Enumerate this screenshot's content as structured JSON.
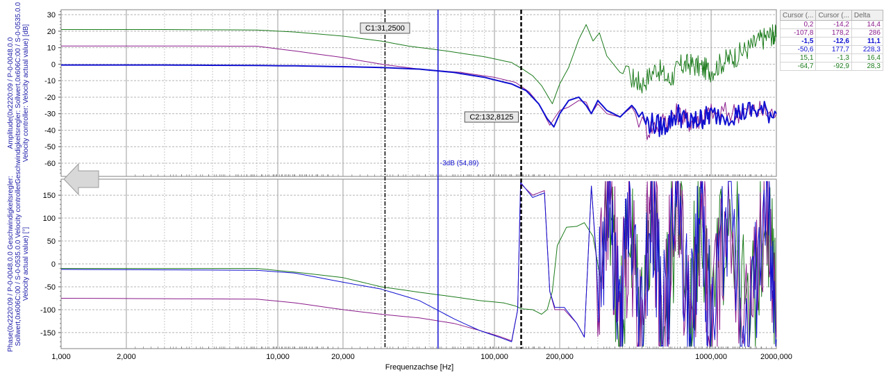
{
  "chart_data": [
    {
      "type": "line",
      "panel": "amplitude",
      "ylabel_lines": [
        "Amplitude(0x2220:09 / P-0-0048.0.0",
        "Geschwindigkeitsregler: Sollwert,0x606C:00 / S-0-0535.0.0",
        "Velocity controller: Velocity actual value) [dB]"
      ],
      "ylim": [
        -68,
        33
      ],
      "yticks": [
        30,
        20,
        10,
        0,
        -10,
        -20,
        -30,
        -40,
        -50,
        -60
      ],
      "xscale": "log",
      "xlim": [
        1000,
        2000000
      ],
      "grid": true,
      "series": [
        {
          "color": "#1a7a1a",
          "width": 1,
          "points": [
            [
              1000,
              21
            ],
            [
              3000,
              21
            ],
            [
              8000,
              20.7
            ],
            [
              12000,
              19.5
            ],
            [
              20000,
              17
            ],
            [
              30000,
              14
            ],
            [
              40000,
              11
            ],
            [
              60000,
              8
            ],
            [
              90000,
              4.5
            ],
            [
              120000,
              1
            ],
            [
              135000,
              -3
            ],
            [
              150000,
              -7
            ],
            [
              165000,
              -13
            ],
            [
              185000,
              -24
            ],
            [
              200000,
              -12
            ],
            [
              220000,
              -2
            ],
            [
              245000,
              15
            ],
            [
              265000,
              24
            ],
            [
              285000,
              14
            ],
            [
              305000,
              19
            ],
            [
              330000,
              5
            ],
            [
              380000,
              -5
            ],
            [
              430000,
              -8
            ],
            [
              480000,
              -12
            ],
            [
              560000,
              -2
            ],
            [
              640000,
              -10
            ],
            [
              720000,
              -1
            ],
            [
              800000,
              0
            ],
            [
              900000,
              -2
            ],
            [
              1000000,
              -4
            ],
            [
              1150000,
              2
            ],
            [
              1300000,
              5
            ],
            [
              1500000,
              10
            ],
            [
              1700000,
              15
            ],
            [
              1900000,
              18
            ],
            [
              2000000,
              17
            ]
          ],
          "noise": {
            "from": 400000,
            "amp": 7
          }
        },
        {
          "color": "#8a1a8a",
          "width": 1,
          "points": [
            [
              1000,
              11
            ],
            [
              3000,
              11
            ],
            [
              8000,
              10.9
            ],
            [
              12000,
              8
            ],
            [
              20000,
              4
            ],
            [
              30000,
              0
            ],
            [
              45000,
              -3
            ],
            [
              70000,
              -5
            ],
            [
              100000,
              -8
            ],
            [
              125000,
              -11
            ],
            [
              145000,
              -17
            ],
            [
              160000,
              -24
            ],
            [
              180000,
              -37
            ],
            [
              200000,
              -28
            ],
            [
              220000,
              -26
            ],
            [
              245000,
              -22
            ],
            [
              265000,
              -23
            ],
            [
              280000,
              -30
            ],
            [
              300000,
              -24
            ],
            [
              330000,
              -30
            ],
            [
              380000,
              -32
            ],
            [
              430000,
              -26
            ],
            [
              500000,
              -40
            ],
            [
              600000,
              -35
            ],
            [
              700000,
              -30
            ],
            [
              800000,
              -35
            ],
            [
              900000,
              -32
            ],
            [
              1000000,
              -30
            ],
            [
              1300000,
              -29
            ],
            [
              1600000,
              -28
            ],
            [
              2000000,
              -30
            ]
          ],
          "noise": {
            "from": 450000,
            "amp": 7
          }
        },
        {
          "color": "#1010d0",
          "width": 2,
          "points": [
            [
              1000,
              -0.5
            ],
            [
              3000,
              -0.5
            ],
            [
              8000,
              -0.8
            ],
            [
              12000,
              -1
            ],
            [
              20000,
              -1.5
            ],
            [
              30000,
              -2
            ],
            [
              45000,
              -3
            ],
            [
              65000,
              -5
            ],
            [
              90000,
              -8
            ],
            [
              120000,
              -12
            ],
            [
              140000,
              -16
            ],
            [
              160000,
              -24
            ],
            [
              175000,
              -33
            ],
            [
              188000,
              -38
            ],
            [
              200000,
              -30
            ],
            [
              220000,
              -22
            ],
            [
              245000,
              -20
            ],
            [
              265000,
              -25
            ],
            [
              280000,
              -30
            ],
            [
              300000,
              -22
            ],
            [
              330000,
              -28
            ],
            [
              380000,
              -32
            ],
            [
              430000,
              -25
            ],
            [
              500000,
              -35
            ],
            [
              600000,
              -38
            ],
            [
              700000,
              -30
            ],
            [
              800000,
              -36
            ],
            [
              900000,
              -33
            ],
            [
              1000000,
              -31
            ],
            [
              1300000,
              -30
            ],
            [
              1600000,
              -28
            ],
            [
              2000000,
              -30
            ]
          ],
          "noise": {
            "from": 450000,
            "amp": 7
          }
        }
      ]
    },
    {
      "type": "line",
      "panel": "phase",
      "ylabel_lines": [
        "Phase(0x2220:09 / P-0-0048.0.0 Geschwindigkeitsregler:",
        "Sollwert,0x606C:00 / S-0-0535.0.0 Velocity controller:",
        "Velocity actual value) [°]"
      ],
      "ylim": [
        -185,
        185
      ],
      "yticks": [
        150,
        100,
        50,
        0,
        -50,
        -100,
        -150
      ],
      "xscale": "log",
      "xlim": [
        1000,
        2000000
      ],
      "xlabel": "Frequenzachse [Hz]",
      "xtick_labels": [
        [
          1000,
          "1,000"
        ],
        [
          2000,
          "2,000"
        ],
        [
          10000,
          "10,000"
        ],
        [
          20000,
          "20,000"
        ],
        [
          100000,
          "100,000"
        ],
        [
          200000,
          "200,000"
        ],
        [
          1000000,
          "1000,000"
        ],
        [
          2000000,
          "2000,000"
        ]
      ],
      "grid": true,
      "series": [
        {
          "color": "#1a7a1a",
          "width": 1,
          "points": [
            [
              1000,
              -10
            ],
            [
              3000,
              -10
            ],
            [
              8000,
              -10
            ],
            [
              12000,
              -18
            ],
            [
              20000,
              -30
            ],
            [
              30000,
              -50
            ],
            [
              45000,
              -62
            ],
            [
              65000,
              -72
            ],
            [
              85000,
              -80
            ],
            [
              110000,
              -85
            ],
            [
              125000,
              -92
            ],
            [
              133000,
              -98
            ],
            [
              150000,
              -100
            ],
            [
              165000,
              -110
            ],
            [
              175000,
              -100
            ],
            [
              185000,
              -60
            ],
            [
              195000,
              40
            ],
            [
              215000,
              80
            ],
            [
              240000,
              82
            ],
            [
              260000,
              90
            ],
            [
              285000,
              60
            ],
            [
              310000,
              -40
            ],
            [
              340000,
              150
            ],
            [
              380000,
              -150
            ],
            [
              420000,
              100
            ],
            [
              470000,
              -120
            ],
            [
              530000,
              140
            ],
            [
              600000,
              -160
            ],
            [
              700000,
              160
            ],
            [
              800000,
              -130
            ],
            [
              900000,
              170
            ],
            [
              1000000,
              -170
            ],
            [
              1200000,
              170
            ],
            [
              1500000,
              -170
            ],
            [
              1800000,
              175
            ],
            [
              2000000,
              -150
            ]
          ],
          "noise": {
            "from": 320000,
            "amp": 170,
            "clip": true
          }
        },
        {
          "color": "#8a1a8a",
          "width": 1,
          "points": [
            [
              1000,
              -75
            ],
            [
              3000,
              -76
            ],
            [
              8000,
              -77
            ],
            [
              12000,
              -85
            ],
            [
              20000,
              -100
            ],
            [
              30000,
              -110
            ],
            [
              45000,
              -118
            ],
            [
              65000,
              -130
            ],
            [
              85000,
              -145
            ],
            [
              105000,
              -158
            ],
            [
              120000,
              -168
            ],
            [
              128000,
              -100
            ],
            [
              132000,
              175
            ],
            [
              150000,
              150
            ],
            [
              170000,
              160
            ],
            [
              180000,
              -60
            ],
            [
              190000,
              -100
            ],
            [
              210000,
              -100
            ],
            [
              240000,
              -130
            ],
            [
              260000,
              -160
            ],
            [
              280000,
              170
            ],
            [
              300000,
              -40
            ],
            [
              340000,
              160
            ],
            [
              380000,
              -150
            ],
            [
              420000,
              120
            ],
            [
              470000,
              -140
            ],
            [
              530000,
              150
            ],
            [
              600000,
              -150
            ],
            [
              700000,
              160
            ],
            [
              800000,
              -170
            ],
            [
              900000,
              150
            ],
            [
              1000000,
              -160
            ],
            [
              1200000,
              160
            ],
            [
              1500000,
              -170
            ],
            [
              1800000,
              170
            ],
            [
              2000000,
              -160
            ]
          ],
          "noise": {
            "from": 300000,
            "amp": 170,
            "clip": true
          }
        },
        {
          "color": "#1010d0",
          "width": 1,
          "points": [
            [
              1000,
              -12
            ],
            [
              3000,
              -13
            ],
            [
              8000,
              -14
            ],
            [
              12000,
              -20
            ],
            [
              20000,
              -40
            ],
            [
              30000,
              -55
            ],
            [
              45000,
              -80
            ],
            [
              65000,
              -120
            ],
            [
              85000,
              -145
            ],
            [
              105000,
              -160
            ],
            [
              120000,
              -170
            ],
            [
              128000,
              -100
            ],
            [
              132000,
              178
            ],
            [
              150000,
              145
            ],
            [
              170000,
              155
            ],
            [
              180000,
              -60
            ],
            [
              190000,
              -95
            ],
            [
              210000,
              -95
            ],
            [
              240000,
              -130
            ],
            [
              260000,
              -160
            ],
            [
              280000,
              170
            ],
            [
              300000,
              -30
            ],
            [
              340000,
              170
            ],
            [
              380000,
              -160
            ],
            [
              420000,
              130
            ],
            [
              470000,
              -150
            ],
            [
              530000,
              160
            ],
            [
              600000,
              -160
            ],
            [
              700000,
              170
            ],
            [
              800000,
              -175
            ],
            [
              900000,
              160
            ],
            [
              1000000,
              -170
            ],
            [
              1200000,
              165
            ],
            [
              1500000,
              -175
            ],
            [
              1800000,
              175
            ],
            [
              2000000,
              -165
            ]
          ],
          "noise": {
            "from": 300000,
            "amp": 170,
            "clip": true
          }
        }
      ]
    }
  ],
  "cursors": {
    "c1": {
      "label": "C1:31,2500",
      "freq": 31.25,
      "color": "#000000"
    },
    "c2": {
      "label": "C2:132,8125",
      "freq": 132.8125,
      "color": "#000000"
    },
    "minus3db": {
      "label": "-3dB (54,89)",
      "freq": 54.89,
      "color": "#1010d0"
    }
  },
  "cursor_table": {
    "headers": [
      "Cursor (...",
      "Cursor (...",
      "Delta"
    ],
    "rows": [
      {
        "color": "#8a1a8a",
        "bold": false,
        "cells": [
          "0,2",
          "-14,2",
          "14,4"
        ]
      },
      {
        "color": "#8a1a8a",
        "bold": false,
        "cells": [
          "-107,8",
          "178,2",
          "286"
        ]
      },
      {
        "color": "#1010d0",
        "bold": true,
        "cells": [
          "-1,5",
          "-12,6",
          "11,1"
        ]
      },
      {
        "color": "#1010d0",
        "bold": false,
        "cells": [
          "-50,6",
          "177,7",
          "228,3"
        ]
      },
      {
        "color": "#1a7a1a",
        "bold": false,
        "cells": [
          "15,1",
          "-1,3",
          "16,4"
        ]
      },
      {
        "color": "#1a7a1a",
        "bold": false,
        "cells": [
          "-64,7",
          "-92,9",
          "28,3"
        ]
      }
    ]
  },
  "collapse_arrow_icon": "left-arrow-icon"
}
